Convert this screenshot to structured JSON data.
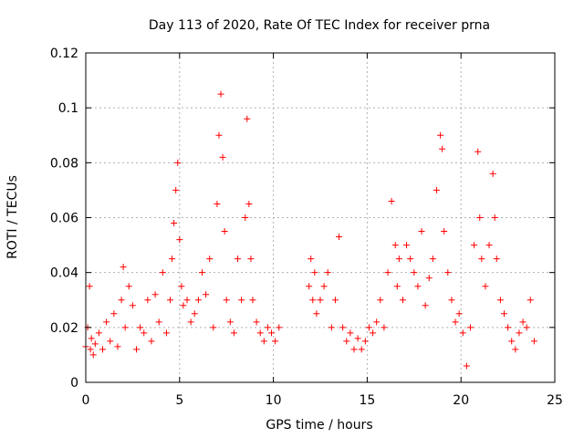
{
  "chart_data": {
    "type": "scatter",
    "title": "Day 113 of 2020, Rate Of TEC Index for receiver prna",
    "xlabel": "GPS time / hours",
    "ylabel": "ROTI / TECUs",
    "xlim": [
      0,
      25
    ],
    "ylim": [
      0,
      0.12
    ],
    "xticks": [
      "0",
      "5",
      "10",
      "15",
      "20",
      "25"
    ],
    "yticks": [
      "0",
      "0.02",
      "0.04",
      "0.06",
      "0.08",
      "0.1",
      "0.12"
    ],
    "grid": true,
    "marker": "+",
    "color": "#ff0000",
    "data_gap_hours": [
      10.3,
      11.9
    ],
    "series": [
      {
        "x": [
          0.0,
          0.1,
          0.2,
          0.25,
          0.3,
          0.4,
          0.5,
          0.7,
          0.9,
          1.1,
          1.3,
          1.5,
          1.7,
          1.9,
          2.0,
          2.1,
          2.3,
          2.5,
          2.7,
          2.9,
          3.1,
          3.3,
          3.5,
          3.7,
          3.9,
          4.1,
          4.3,
          4.5,
          4.6,
          4.7,
          4.8,
          4.9,
          5.0,
          5.1,
          5.2,
          5.4,
          5.6,
          5.8,
          6.0,
          6.2,
          6.4,
          6.6,
          6.8,
          7.0,
          7.1,
          7.2,
          7.3,
          7.4,
          7.5,
          7.7,
          7.9,
          8.1,
          8.3,
          8.5,
          8.6,
          8.7,
          8.8,
          8.9,
          9.1,
          9.3,
          9.5,
          9.7,
          9.9,
          10.1,
          10.3,
          11.9,
          12.0,
          12.1,
          12.2,
          12.3,
          12.5,
          12.7,
          12.9,
          13.1,
          13.3,
          13.5,
          13.7,
          13.9,
          14.1,
          14.3,
          14.5,
          14.7,
          14.9,
          15.1,
          15.3,
          15.5,
          15.7,
          15.9,
          16.1,
          16.3,
          16.5,
          16.6,
          16.7,
          16.9,
          17.1,
          17.3,
          17.5,
          17.7,
          17.9,
          18.1,
          18.3,
          18.5,
          18.7,
          18.9,
          19.0,
          19.1,
          19.3,
          19.5,
          19.7,
          19.9,
          20.1,
          20.3,
          20.5,
          20.7,
          20.9,
          21.0,
          21.1,
          21.3,
          21.5,
          21.7,
          21.8,
          21.9,
          22.1,
          22.3,
          22.5,
          22.7,
          22.9,
          23.1,
          23.3,
          23.5,
          23.7,
          23.9
        ],
        "y": [
          0.013,
          0.02,
          0.035,
          0.012,
          0.016,
          0.01,
          0.014,
          0.018,
          0.012,
          0.022,
          0.015,
          0.025,
          0.013,
          0.03,
          0.042,
          0.02,
          0.035,
          0.028,
          0.012,
          0.02,
          0.018,
          0.03,
          0.015,
          0.032,
          0.022,
          0.04,
          0.018,
          0.03,
          0.045,
          0.058,
          0.07,
          0.08,
          0.052,
          0.035,
          0.028,
          0.03,
          0.022,
          0.025,
          0.03,
          0.04,
          0.032,
          0.045,
          0.02,
          0.065,
          0.09,
          0.105,
          0.082,
          0.055,
          0.03,
          0.022,
          0.018,
          0.045,
          0.03,
          0.06,
          0.096,
          0.065,
          0.045,
          0.03,
          0.022,
          0.018,
          0.015,
          0.02,
          0.018,
          0.015,
          0.02,
          0.035,
          0.045,
          0.03,
          0.04,
          0.025,
          0.03,
          0.035,
          0.04,
          0.02,
          0.03,
          0.053,
          0.02,
          0.015,
          0.018,
          0.012,
          0.016,
          0.012,
          0.015,
          0.02,
          0.018,
          0.022,
          0.03,
          0.02,
          0.04,
          0.066,
          0.05,
          0.035,
          0.045,
          0.03,
          0.05,
          0.045,
          0.04,
          0.035,
          0.055,
          0.028,
          0.038,
          0.045,
          0.07,
          0.09,
          0.085,
          0.055,
          0.04,
          0.03,
          0.022,
          0.025,
          0.018,
          0.006,
          0.02,
          0.05,
          0.084,
          0.06,
          0.045,
          0.035,
          0.05,
          0.076,
          0.06,
          0.045,
          0.03,
          0.025,
          0.02,
          0.015,
          0.012,
          0.018,
          0.022,
          0.02,
          0.03,
          0.015
        ]
      }
    ]
  }
}
